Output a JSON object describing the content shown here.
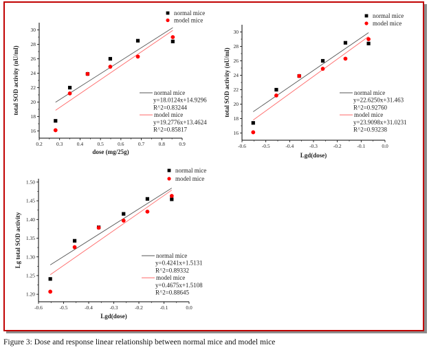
{
  "caption": "Figure 3: Dose and response linear relationship between normal mice and model mice",
  "colors": {
    "normal": "#000000",
    "model": "#ff0000",
    "normal_fit": "#555555",
    "model_fit": "#ff6666",
    "frame": "#c00000"
  },
  "chart_data": [
    {
      "type": "scatter",
      "xlabel": "dose (mg/25g)",
      "ylabel": "total SOD activity (nU/ml)",
      "xlim": [
        0.2,
        0.9
      ],
      "ylim": [
        15,
        31
      ],
      "xticks": [
        0.2,
        0.3,
        0.4,
        0.5,
        0.6,
        0.7,
        0.8,
        0.9
      ],
      "xtick_labels": [
        "0.2",
        "0.3",
        "0.4",
        "0.5",
        "0.6",
        "0.7",
        "0.8",
        "0.9"
      ],
      "yticks": [
        16,
        18,
        20,
        22,
        24,
        26,
        28,
        30
      ],
      "ytick_labels": [
        "16",
        "18",
        "20",
        "22",
        "24",
        "26",
        "28",
        "30"
      ],
      "grid": false,
      "legend": [
        "normal mice",
        "model mice"
      ],
      "legend_position": "top-right",
      "series": [
        {
          "name": "normal mice",
          "marker": "square",
          "x": [
            0.28,
            0.35,
            0.437,
            0.548,
            0.683,
            0.854
          ],
          "y": [
            17.4,
            22.0,
            23.9,
            26.0,
            28.5,
            28.4
          ]
        },
        {
          "name": "model mice",
          "marker": "circle",
          "x": [
            0.28,
            0.35,
            0.437,
            0.548,
            0.683,
            0.854
          ],
          "y": [
            16.1,
            21.2,
            23.9,
            24.9,
            26.3,
            29.0
          ]
        }
      ],
      "fits": [
        {
          "name": "normal mice",
          "label": "normal mice",
          "equation": "y=18.0124x+14.9296",
          "r2": "R^2=0.83244",
          "slope": 18.0124,
          "intercept": 14.9296,
          "x_range": [
            0.28,
            0.854
          ]
        },
        {
          "name": "model mice",
          "label": "model mice",
          "equation": "y=19.2776x+13.4624",
          "r2": "R^2=0.85817",
          "slope": 19.2776,
          "intercept": 13.4624,
          "x_range": [
            0.28,
            0.854
          ]
        }
      ]
    },
    {
      "type": "scatter",
      "xlabel": "Lgd(dose)",
      "ylabel": "total SOD activity (nU/ml)",
      "xlim": [
        -0.6,
        0.0
      ],
      "ylim": [
        15,
        31
      ],
      "xticks": [
        -0.6,
        -0.5,
        -0.4,
        -0.3,
        -0.2,
        -0.1,
        0.0
      ],
      "xtick_labels": [
        "-0.6",
        "-0.5",
        "-0.4",
        "-0.3",
        "-0.2",
        "-0.1",
        "0.0"
      ],
      "yticks": [
        16,
        18,
        20,
        22,
        24,
        26,
        28,
        30
      ],
      "ytick_labels": [
        "16",
        "18",
        "20",
        "22",
        "24",
        "26",
        "28",
        "30"
      ],
      "grid": false,
      "legend": [
        "normal mice",
        "model mice"
      ],
      "legend_position": "top-right",
      "series": [
        {
          "name": "normal mice",
          "marker": "square",
          "x": [
            -0.553,
            -0.456,
            -0.36,
            -0.261,
            -0.166,
            -0.069
          ],
          "y": [
            17.4,
            22.0,
            23.9,
            26.0,
            28.5,
            28.4
          ]
        },
        {
          "name": "model mice",
          "marker": "circle",
          "x": [
            -0.553,
            -0.456,
            -0.36,
            -0.261,
            -0.166,
            -0.069
          ],
          "y": [
            16.1,
            21.2,
            23.9,
            24.9,
            26.3,
            29.0
          ]
        }
      ],
      "fits": [
        {
          "name": "normal mice",
          "label": "normal  mice",
          "equation": "y=22.6250x+31.463",
          "r2": "R^2=0.92760",
          "slope": 22.625,
          "intercept": 31.463,
          "x_range": [
            -0.553,
            -0.069
          ]
        },
        {
          "name": "model mice",
          "label": "model mice",
          "equation": "y=23.9098x+31.0231",
          "r2": "R^2=0.93238",
          "slope": 23.9098,
          "intercept": 31.0231,
          "x_range": [
            -0.553,
            -0.069
          ]
        }
      ]
    },
    {
      "type": "scatter",
      "xlabel": "Lgd(dose)",
      "ylabel": "Lg total SOD activity",
      "xlim": [
        -0.6,
        0.0
      ],
      "ylim": [
        1.18,
        1.52
      ],
      "xticks": [
        -0.6,
        -0.5,
        -0.4,
        -0.3,
        -0.2,
        -0.1,
        0.0
      ],
      "xtick_labels": [
        "-0.6",
        "-0.5",
        "-0.4",
        "-0.3",
        "-0.2",
        "-0.1",
        "0.0"
      ],
      "yticks": [
        1.2,
        1.25,
        1.3,
        1.35,
        1.4,
        1.45,
        1.5
      ],
      "ytick_labels": [
        "1.20",
        "1.25",
        "1.30",
        "1.35",
        "1.40",
        "1.45",
        "1.50"
      ],
      "grid": false,
      "legend": [
        "normal mice",
        "model mice"
      ],
      "legend_position": "top-right",
      "series": [
        {
          "name": "normal mice",
          "marker": "square",
          "x": [
            -0.553,
            -0.456,
            -0.36,
            -0.261,
            -0.166,
            -0.069
          ],
          "y": [
            1.241,
            1.343,
            1.379,
            1.415,
            1.455,
            1.454
          ]
        },
        {
          "name": "model mice",
          "marker": "circle",
          "x": [
            -0.553,
            -0.456,
            -0.36,
            -0.261,
            -0.166,
            -0.069
          ],
          "y": [
            1.207,
            1.326,
            1.378,
            1.397,
            1.421,
            1.463
          ]
        }
      ],
      "fits": [
        {
          "name": "normal mice",
          "label": "normal mice",
          "equation": "y=0.4241x+1.5131",
          "r2": "R^2=0.89332",
          "slope": 0.4241,
          "intercept": 1.5131,
          "x_range": [
            -0.553,
            -0.069
          ]
        },
        {
          "name": "model mice",
          "label": "model mice",
          "equation": "y=0.4675x+1.5108",
          "r2": "R^2=0.88645",
          "slope": 0.4675,
          "intercept": 1.5108,
          "x_range": [
            -0.553,
            -0.069
          ]
        }
      ]
    }
  ]
}
